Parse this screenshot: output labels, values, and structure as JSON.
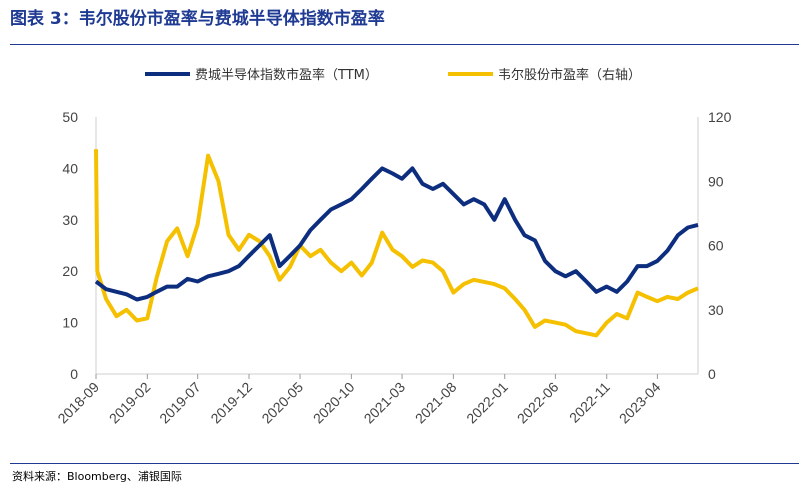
{
  "header": {
    "figure_label": "图表 3：",
    "title": "韦尔股份市盈率与费城半导体指数市盈率"
  },
  "source": "资料来源：Bloomberg、浦银国际",
  "colors": {
    "series1": "#0d2e7e",
    "series2": "#f5c000",
    "rule": "#1f3a93"
  },
  "chart_data": {
    "type": "line",
    "left_axis": {
      "ticks": [
        0,
        10,
        20,
        30,
        40,
        50
      ],
      "ylim": [
        0,
        50
      ]
    },
    "right_axis": {
      "ticks": [
        0,
        30,
        60,
        90,
        120
      ],
      "ylim": [
        0,
        120
      ]
    },
    "x_ticks": [
      "2018-09",
      "2019-02",
      "2019-07",
      "2019-12",
      "2020-05",
      "2020-10",
      "2021-03",
      "2021-08",
      "2022-01",
      "2022-06",
      "2022-11",
      "2023-04"
    ],
    "x_range": [
      "2018-09-01",
      "2023-07-31"
    ],
    "legend": {
      "placement": "top"
    },
    "series": [
      {
        "name": "费城半导体指数市盈率（TTM）",
        "axis": "left",
        "points": [
          [
            "2018-09-01",
            18.0
          ],
          [
            "2018-10-01",
            16.5
          ],
          [
            "2018-11-01",
            16.0
          ],
          [
            "2018-12-01",
            15.5
          ],
          [
            "2019-01-01",
            14.5
          ],
          [
            "2019-02-01",
            15.0
          ],
          [
            "2019-03-01",
            16.0
          ],
          [
            "2019-04-01",
            17.0
          ],
          [
            "2019-05-01",
            17.0
          ],
          [
            "2019-06-01",
            18.5
          ],
          [
            "2019-07-01",
            18.0
          ],
          [
            "2019-08-01",
            19.0
          ],
          [
            "2019-09-01",
            19.5
          ],
          [
            "2019-10-01",
            20.0
          ],
          [
            "2019-11-01",
            21.0
          ],
          [
            "2019-12-01",
            23.0
          ],
          [
            "2020-01-01",
            25.0
          ],
          [
            "2020-02-01",
            27.0
          ],
          [
            "2020-03-01",
            21.0
          ],
          [
            "2020-04-01",
            23.0
          ],
          [
            "2020-05-01",
            25.0
          ],
          [
            "2020-06-01",
            28.0
          ],
          [
            "2020-07-01",
            30.0
          ],
          [
            "2020-08-01",
            32.0
          ],
          [
            "2020-09-01",
            33.0
          ],
          [
            "2020-10-01",
            34.0
          ],
          [
            "2020-11-01",
            36.0
          ],
          [
            "2020-12-01",
            38.0
          ],
          [
            "2021-01-01",
            40.0
          ],
          [
            "2021-02-01",
            39.0
          ],
          [
            "2021-03-01",
            38.0
          ],
          [
            "2021-04-01",
            40.0
          ],
          [
            "2021-05-01",
            37.0
          ],
          [
            "2021-06-01",
            36.0
          ],
          [
            "2021-07-01",
            37.0
          ],
          [
            "2021-08-01",
            35.0
          ],
          [
            "2021-09-01",
            33.0
          ],
          [
            "2021-10-01",
            34.0
          ],
          [
            "2021-11-01",
            33.0
          ],
          [
            "2021-12-01",
            30.0
          ],
          [
            "2022-01-01",
            34.0
          ],
          [
            "2022-02-01",
            30.0
          ],
          [
            "2022-03-01",
            27.0
          ],
          [
            "2022-04-01",
            26.0
          ],
          [
            "2022-05-01",
            22.0
          ],
          [
            "2022-06-01",
            20.0
          ],
          [
            "2022-07-01",
            19.0
          ],
          [
            "2022-08-01",
            20.0
          ],
          [
            "2022-09-01",
            18.0
          ],
          [
            "2022-10-01",
            16.0
          ],
          [
            "2022-11-01",
            17.0
          ],
          [
            "2022-12-01",
            16.0
          ],
          [
            "2023-01-01",
            18.0
          ],
          [
            "2023-02-01",
            21.0
          ],
          [
            "2023-03-01",
            21.0
          ],
          [
            "2023-04-01",
            22.0
          ],
          [
            "2023-05-01",
            24.0
          ],
          [
            "2023-06-01",
            27.0
          ],
          [
            "2023-07-01",
            28.5
          ],
          [
            "2023-07-31",
            29.0
          ]
        ]
      },
      {
        "name": "韦尔股份市盈率（右轴）",
        "axis": "right",
        "points": [
          [
            "2018-09-01",
            105.0
          ],
          [
            "2018-09-05",
            48.0
          ],
          [
            "2018-10-01",
            35.0
          ],
          [
            "2018-11-01",
            27.0
          ],
          [
            "2018-12-01",
            30.0
          ],
          [
            "2019-01-01",
            25.0
          ],
          [
            "2019-02-01",
            26.0
          ],
          [
            "2019-03-01",
            45.0
          ],
          [
            "2019-04-01",
            62.0
          ],
          [
            "2019-05-01",
            68.0
          ],
          [
            "2019-06-01",
            55.0
          ],
          [
            "2019-07-01",
            70.0
          ],
          [
            "2019-08-01",
            102.0
          ],
          [
            "2019-09-01",
            90.0
          ],
          [
            "2019-10-01",
            65.0
          ],
          [
            "2019-11-01",
            58.0
          ],
          [
            "2019-12-01",
            65.0
          ],
          [
            "2020-01-01",
            62.0
          ],
          [
            "2020-02-01",
            55.0
          ],
          [
            "2020-03-01",
            44.0
          ],
          [
            "2020-04-01",
            50.0
          ],
          [
            "2020-05-01",
            60.0
          ],
          [
            "2020-06-01",
            55.0
          ],
          [
            "2020-07-01",
            58.0
          ],
          [
            "2020-08-01",
            52.0
          ],
          [
            "2020-09-01",
            48.0
          ],
          [
            "2020-10-01",
            52.0
          ],
          [
            "2020-11-01",
            46.0
          ],
          [
            "2020-12-01",
            52.0
          ],
          [
            "2021-01-01",
            66.0
          ],
          [
            "2021-02-01",
            58.0
          ],
          [
            "2021-03-01",
            55.0
          ],
          [
            "2021-04-01",
            50.0
          ],
          [
            "2021-05-01",
            53.0
          ],
          [
            "2021-06-01",
            52.0
          ],
          [
            "2021-07-01",
            48.0
          ],
          [
            "2021-08-01",
            38.0
          ],
          [
            "2021-09-01",
            42.0
          ],
          [
            "2021-10-01",
            44.0
          ],
          [
            "2021-11-01",
            43.0
          ],
          [
            "2021-12-01",
            42.0
          ],
          [
            "2022-01-01",
            40.0
          ],
          [
            "2022-02-01",
            35.0
          ],
          [
            "2022-03-01",
            30.0
          ],
          [
            "2022-04-01",
            22.0
          ],
          [
            "2022-05-01",
            25.0
          ],
          [
            "2022-06-01",
            24.0
          ],
          [
            "2022-07-01",
            23.0
          ],
          [
            "2022-08-01",
            20.0
          ],
          [
            "2022-09-01",
            19.0
          ],
          [
            "2022-10-01",
            18.0
          ],
          [
            "2022-11-01",
            24.0
          ],
          [
            "2022-12-01",
            28.0
          ],
          [
            "2023-01-01",
            26.0
          ],
          [
            "2023-02-01",
            38.0
          ],
          [
            "2023-03-01",
            36.0
          ],
          [
            "2023-04-01",
            34.0
          ],
          [
            "2023-05-01",
            36.0
          ],
          [
            "2023-06-01",
            35.0
          ],
          [
            "2023-07-01",
            38.0
          ],
          [
            "2023-07-31",
            40.0
          ]
        ]
      }
    ]
  }
}
